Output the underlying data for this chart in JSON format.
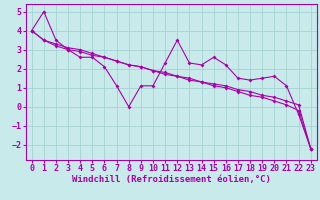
{
  "title": "",
  "xlabel": "Windchill (Refroidissement éolien,°C)",
  "background_color": "#c8eaeb",
  "grid_color": "#9dcfcc",
  "line_color": "#aa00aa",
  "x_values": [
    0,
    1,
    2,
    3,
    4,
    5,
    6,
    7,
    8,
    9,
    10,
    11,
    12,
    13,
    14,
    15,
    16,
    17,
    18,
    19,
    20,
    21,
    22,
    23
  ],
  "line1": [
    4.0,
    5.0,
    3.5,
    3.0,
    2.6,
    2.6,
    2.1,
    1.1,
    0.0,
    1.1,
    1.1,
    2.3,
    3.5,
    2.3,
    2.2,
    2.6,
    2.2,
    1.5,
    1.4,
    1.5,
    1.6,
    1.1,
    -0.4,
    -2.2
  ],
  "line2": [
    4.0,
    3.5,
    3.2,
    3.0,
    2.9,
    2.7,
    2.6,
    2.4,
    2.2,
    2.1,
    1.9,
    1.8,
    1.6,
    1.5,
    1.3,
    1.2,
    1.1,
    0.9,
    0.8,
    0.6,
    0.5,
    0.3,
    0.1,
    -2.2
  ],
  "line3": [
    4.0,
    3.5,
    3.3,
    3.1,
    3.0,
    2.8,
    2.6,
    2.4,
    2.2,
    2.1,
    1.9,
    1.7,
    1.6,
    1.4,
    1.3,
    1.1,
    1.0,
    0.8,
    0.6,
    0.5,
    0.3,
    0.1,
    -0.2,
    -2.2
  ],
  "ylim": [
    -2.8,
    5.4
  ],
  "yticks": [
    -2,
    -1,
    0,
    1,
    2,
    3,
    4,
    5
  ],
  "xticks": [
    0,
    1,
    2,
    3,
    4,
    5,
    6,
    7,
    8,
    9,
    10,
    11,
    12,
    13,
    14,
    15,
    16,
    17,
    18,
    19,
    20,
    21,
    22,
    23
  ],
  "xlabel_fontsize": 6.5,
  "tick_fontsize": 6.0
}
